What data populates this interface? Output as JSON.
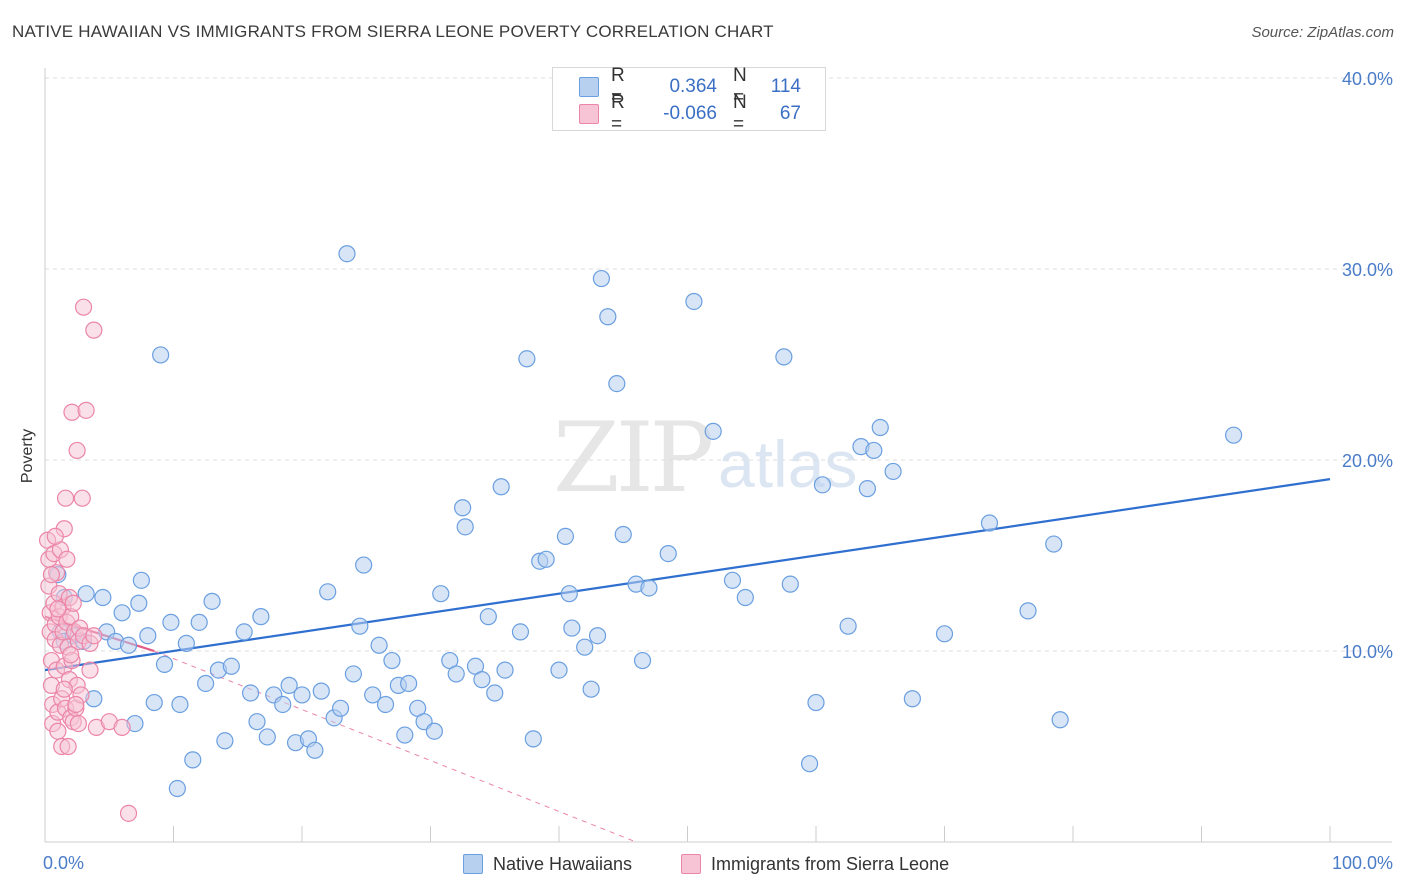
{
  "title": "NATIVE HAWAIIAN VS IMMIGRANTS FROM SIERRA LEONE POVERTY CORRELATION CHART",
  "source": "Source: ZipAtlas.com",
  "watermark": {
    "zip": "ZIP",
    "atlas": "atlas"
  },
  "colors": {
    "blue": "#6a9fe0",
    "blue_fill": "#b8d0f0",
    "blue_line": "#2f6fd0",
    "pink": "#ec85a8",
    "pink_fill": "#f6c4d4",
    "pink_line": "#e05a88",
    "grid": "#dddddd",
    "tick": "#4a7cc8"
  },
  "stats": {
    "rows": [
      {
        "r_label": "R =",
        "r_value": "0.364",
        "n_label": "N =",
        "n_value": "114"
      },
      {
        "r_label": "R =",
        "r_value": "-0.066",
        "n_label": "N =",
        "n_value": "67"
      }
    ]
  },
  "legend": {
    "series1": "Native Hawaiians",
    "series2": "Immigrants from Sierra Leone"
  },
  "chart_data": {
    "type": "scatter",
    "title": "NATIVE HAWAIIAN VS IMMIGRANTS FROM SIERRA LEONE POVERTY CORRELATION CHART",
    "xlabel": "",
    "ylabel": "Poverty",
    "xlim": [
      0,
      100
    ],
    "ylim": [
      0,
      40
    ],
    "x_tick_labels": [
      "0.0%",
      "100.0%"
    ],
    "y_ticks": [
      10,
      20,
      30,
      40
    ],
    "y_tick_labels": [
      "10.0%",
      "20.0%",
      "30.0%",
      "40.0%"
    ],
    "grid": true,
    "legend_position": "bottom",
    "series": [
      {
        "name": "Native Hawaiians",
        "r": 0.364,
        "n": 114,
        "trend": {
          "x": [
            0,
            100
          ],
          "y": [
            9.0,
            19.0
          ]
        },
        "points": [
          [
            1.0,
            14.0
          ],
          [
            1.2,
            11.0
          ],
          [
            1.5,
            10.5
          ],
          [
            2.2,
            10.8
          ],
          [
            3.0,
            10.5
          ],
          [
            3.2,
            13.0
          ],
          [
            3.8,
            7.5
          ],
          [
            4.5,
            12.8
          ],
          [
            4.8,
            11.0
          ],
          [
            5.5,
            10.5
          ],
          [
            6.0,
            12.0
          ],
          [
            6.5,
            10.3
          ],
          [
            7.0,
            6.2
          ],
          [
            7.3,
            12.5
          ],
          [
            7.5,
            13.7
          ],
          [
            8.0,
            10.8
          ],
          [
            8.5,
            7.3
          ],
          [
            9.0,
            25.5
          ],
          [
            9.3,
            9.3
          ],
          [
            9.8,
            11.5
          ],
          [
            10.3,
            2.8
          ],
          [
            10.5,
            7.2
          ],
          [
            11.0,
            10.4
          ],
          [
            11.5,
            4.3
          ],
          [
            12.0,
            11.5
          ],
          [
            12.5,
            8.3
          ],
          [
            13.0,
            12.6
          ],
          [
            13.5,
            9.0
          ],
          [
            14.0,
            5.3
          ],
          [
            14.5,
            9.2
          ],
          [
            15.5,
            11.0
          ],
          [
            16.0,
            7.8
          ],
          [
            16.5,
            6.3
          ],
          [
            16.8,
            11.8
          ],
          [
            17.3,
            5.5
          ],
          [
            17.8,
            7.7
          ],
          [
            18.5,
            7.2
          ],
          [
            19.0,
            8.2
          ],
          [
            19.5,
            5.2
          ],
          [
            20.0,
            7.7
          ],
          [
            20.5,
            5.4
          ],
          [
            21.0,
            4.8
          ],
          [
            21.5,
            7.9
          ],
          [
            22.0,
            13.1
          ],
          [
            22.5,
            6.5
          ],
          [
            23.0,
            7.0
          ],
          [
            23.5,
            30.8
          ],
          [
            24.0,
            8.8
          ],
          [
            24.5,
            11.3
          ],
          [
            24.8,
            14.5
          ],
          [
            25.5,
            7.7
          ],
          [
            26.0,
            10.3
          ],
          [
            26.5,
            7.2
          ],
          [
            27.0,
            9.5
          ],
          [
            27.5,
            8.2
          ],
          [
            28.0,
            5.6
          ],
          [
            28.3,
            8.3
          ],
          [
            29.0,
            7.0
          ],
          [
            29.5,
            6.3
          ],
          [
            30.3,
            5.8
          ],
          [
            30.8,
            13.0
          ],
          [
            31.5,
            9.5
          ],
          [
            32.0,
            8.8
          ],
          [
            32.5,
            17.5
          ],
          [
            32.7,
            16.5
          ],
          [
            33.5,
            9.2
          ],
          [
            34.0,
            8.5
          ],
          [
            34.5,
            11.8
          ],
          [
            35.0,
            7.8
          ],
          [
            35.5,
            18.6
          ],
          [
            35.8,
            9.0
          ],
          [
            37.0,
            11.0
          ],
          [
            37.5,
            25.3
          ],
          [
            38.0,
            5.4
          ],
          [
            38.5,
            14.7
          ],
          [
            39.0,
            14.8
          ],
          [
            40.0,
            9.0
          ],
          [
            40.5,
            16.0
          ],
          [
            40.8,
            13.0
          ],
          [
            41.0,
            11.2
          ],
          [
            42.0,
            10.2
          ],
          [
            42.5,
            8.0
          ],
          [
            43.0,
            10.8
          ],
          [
            43.3,
            29.5
          ],
          [
            43.8,
            27.5
          ],
          [
            44.5,
            24.0
          ],
          [
            45.0,
            16.1
          ],
          [
            46.0,
            13.5
          ],
          [
            46.5,
            9.5
          ],
          [
            47.0,
            13.3
          ],
          [
            48.5,
            15.1
          ],
          [
            50.5,
            28.3
          ],
          [
            52.0,
            21.5
          ],
          [
            53.5,
            13.7
          ],
          [
            54.5,
            12.8
          ],
          [
            57.5,
            25.4
          ],
          [
            58.0,
            13.5
          ],
          [
            59.5,
            4.1
          ],
          [
            60.0,
            7.3
          ],
          [
            60.5,
            18.7
          ],
          [
            62.5,
            11.3
          ],
          [
            63.5,
            20.7
          ],
          [
            64.0,
            18.5
          ],
          [
            64.5,
            20.5
          ],
          [
            65.0,
            21.7
          ],
          [
            66.0,
            19.4
          ],
          [
            67.5,
            7.5
          ],
          [
            70.0,
            10.9
          ],
          [
            73.5,
            16.7
          ],
          [
            76.5,
            12.1
          ],
          [
            78.5,
            15.6
          ],
          [
            79.0,
            6.4
          ],
          [
            92.5,
            21.3
          ],
          [
            1.5,
            12.8
          ]
        ]
      },
      {
        "name": "Immigrants from Sierra Leone",
        "r": -0.066,
        "n": 67,
        "trend": {
          "x": [
            0,
            8.5
          ],
          "y": [
            11.8,
            10.0
          ]
        },
        "trend_dashed": {
          "x": [
            8.5,
            46
          ],
          "y": [
            10.0,
            0.0
          ]
        },
        "points": [
          [
            0.2,
            15.8
          ],
          [
            0.3,
            14.8
          ],
          [
            0.3,
            13.4
          ],
          [
            0.4,
            12.0
          ],
          [
            0.4,
            11.0
          ],
          [
            0.5,
            9.5
          ],
          [
            0.5,
            8.2
          ],
          [
            0.6,
            7.2
          ],
          [
            0.6,
            6.2
          ],
          [
            0.7,
            15.1
          ],
          [
            0.7,
            12.5
          ],
          [
            0.8,
            11.4
          ],
          [
            0.8,
            10.6
          ],
          [
            0.9,
            14.1
          ],
          [
            0.9,
            9.0
          ],
          [
            1.0,
            6.8
          ],
          [
            1.0,
            5.8
          ],
          [
            1.1,
            13.0
          ],
          [
            1.1,
            11.8
          ],
          [
            1.2,
            15.3
          ],
          [
            1.2,
            10.3
          ],
          [
            1.3,
            7.5
          ],
          [
            1.3,
            5.0
          ],
          [
            1.4,
            12.3
          ],
          [
            1.4,
            11.0
          ],
          [
            1.5,
            16.4
          ],
          [
            1.5,
            9.2
          ],
          [
            1.6,
            18.0
          ],
          [
            1.6,
            7.0
          ],
          [
            1.7,
            14.8
          ],
          [
            1.7,
            11.5
          ],
          [
            1.8,
            10.2
          ],
          [
            1.8,
            5.0
          ],
          [
            1.9,
            12.8
          ],
          [
            1.9,
            8.5
          ],
          [
            2.0,
            11.8
          ],
          [
            2.0,
            6.5
          ],
          [
            2.1,
            22.5
          ],
          [
            2.1,
            9.5
          ],
          [
            2.2,
            12.5
          ],
          [
            2.2,
            6.3
          ],
          [
            2.3,
            11.0
          ],
          [
            2.4,
            7.0
          ],
          [
            2.5,
            20.5
          ],
          [
            2.5,
            8.2
          ],
          [
            2.6,
            10.5
          ],
          [
            2.6,
            6.2
          ],
          [
            2.7,
            11.2
          ],
          [
            2.8,
            7.7
          ],
          [
            2.9,
            18.0
          ],
          [
            3.0,
            10.8
          ],
          [
            3.0,
            28.0
          ],
          [
            3.2,
            22.6
          ],
          [
            3.5,
            9.0
          ],
          [
            3.5,
            10.4
          ],
          [
            3.8,
            10.8
          ],
          [
            3.8,
            26.8
          ],
          [
            4.0,
            6.0
          ],
          [
            5.0,
            6.3
          ],
          [
            6.0,
            6.0
          ],
          [
            6.5,
            1.5
          ],
          [
            0.5,
            14.0
          ],
          [
            1.0,
            12.2
          ],
          [
            1.5,
            8.0
          ],
          [
            2.0,
            9.8
          ],
          [
            0.8,
            16.0
          ],
          [
            2.4,
            7.2
          ]
        ]
      }
    ]
  }
}
